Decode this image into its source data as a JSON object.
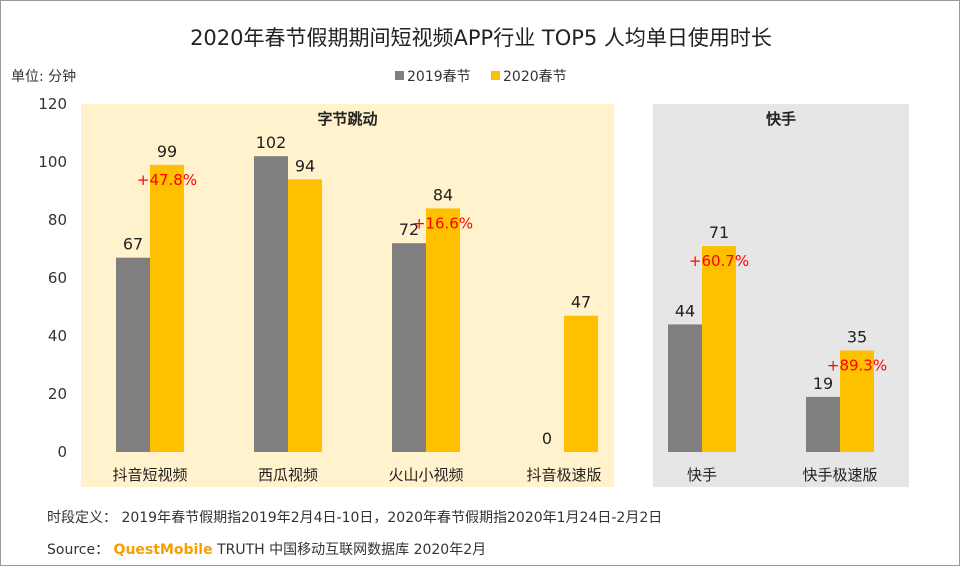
{
  "title": "2020年春节假期期间短视频APP行业 TOP5 人均单日使用时长",
  "unit_label": "单位: 分钟",
  "footer": {
    "definition_label": "时段定义：",
    "definition_text": "2019年春节假期指2019年2月4日-10日，2020年春节假期指2020年1月24日-2月2日",
    "source_label": "Source：",
    "source_brand": "QuestMobile",
    "source_text": "TRUTH 中国移动互联网数据库 2020年2月"
  },
  "colors": {
    "2019": "#7f7f7f",
    "2020": "#ffc000",
    "group_bytedance": "#fff2cc",
    "group_kuaishou": "#e7e6e6",
    "growth": "#ff0000"
  },
  "chart_data": {
    "type": "bar",
    "title": "2020年春节假期期间短视频APP行业 TOP5 人均单日使用时长",
    "ylabel": "单位: 分钟",
    "ylim": [
      0,
      120
    ],
    "yticks": [
      0,
      20,
      40,
      60,
      80,
      100,
      120
    ],
    "grid": false,
    "legend_position": "top",
    "categories": [
      "抖音短视频",
      "西瓜视频",
      "火山小视频",
      "抖音极速版",
      "快手",
      "快手极速版"
    ],
    "series": [
      {
        "name": "2019春节",
        "values": [
          67,
          102,
          72,
          0,
          44,
          19
        ]
      },
      {
        "name": "2020春节",
        "values": [
          99,
          94,
          84,
          47,
          71,
          35
        ]
      }
    ],
    "growth_labels": [
      "+47.8%",
      "",
      "+16.6%",
      "",
      "+60.7%",
      "+89.3%"
    ],
    "groups": [
      {
        "label": "字节跳动",
        "from": 0,
        "to": 3
      },
      {
        "label": "快手",
        "from": 4,
        "to": 5
      }
    ]
  }
}
